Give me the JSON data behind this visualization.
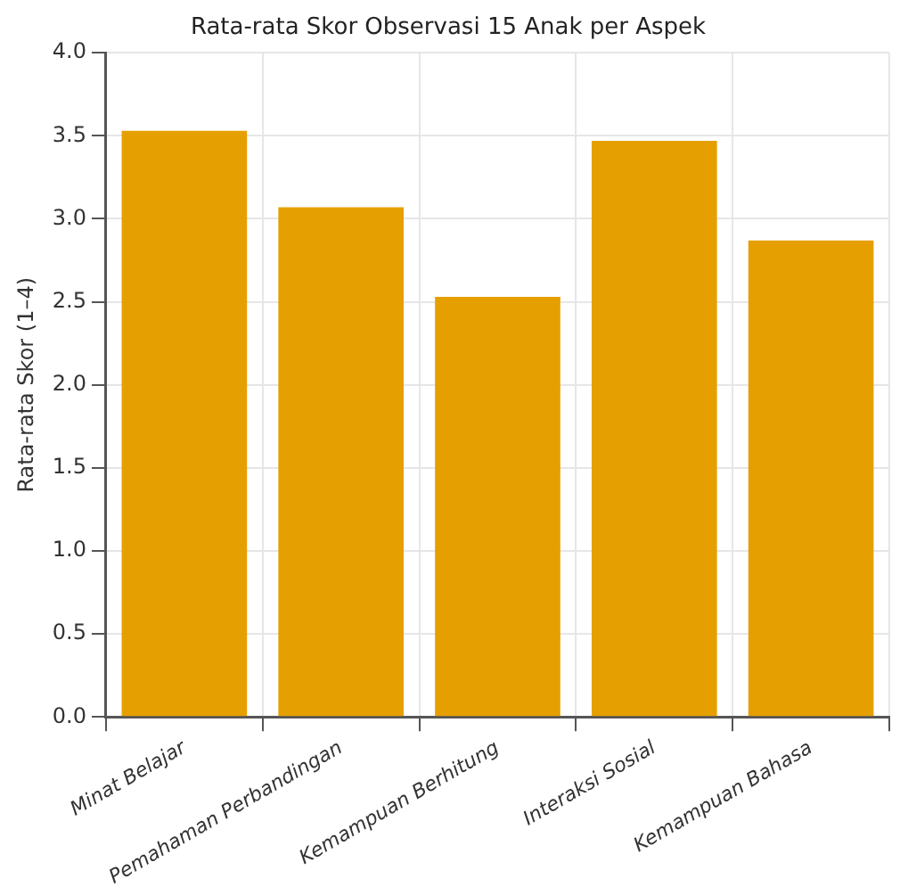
{
  "chart_data": {
    "type": "bar",
    "title": "Rata-rata Skor Observasi 15 Anak per Aspek",
    "ylabel": "Rata-rata Skor (1–4)",
    "categories": [
      "Minat Belajar",
      "Pemahaman Perbandingan",
      "Kemampuan Berhitung",
      "Interaksi Sosial",
      "Kemampuan Bahasa"
    ],
    "values": [
      3.53,
      3.07,
      2.53,
      3.47,
      2.87
    ],
    "color": "#e69f00",
    "ylim": [
      0,
      4
    ],
    "yticks": [
      {
        "value": 0,
        "label": "0.0"
      },
      0.5,
      {
        "value": 1,
        "label": "1.0"
      },
      1.5,
      {
        "value": 2,
        "label": "2.0"
      },
      2.5,
      {
        "value": 3,
        "label": "3.0"
      },
      3.5,
      {
        "value": 4,
        "label": "4.0"
      }
    ],
    "grid": true
  }
}
